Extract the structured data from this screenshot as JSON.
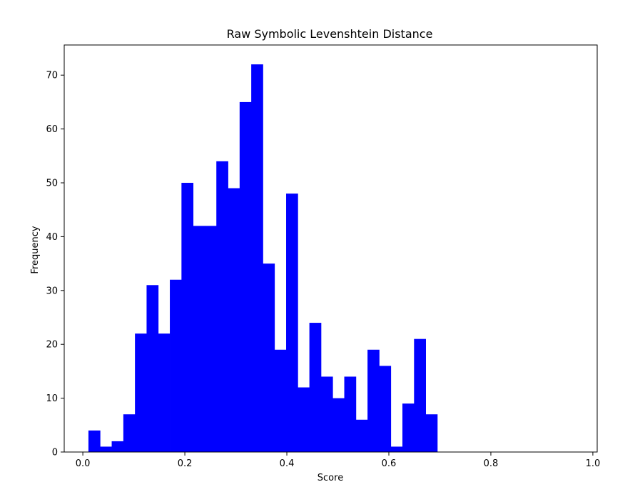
{
  "chart_data": {
    "type": "bar",
    "title": "Raw Symbolic Levenshtein Distance",
    "xlabel": "Score",
    "ylabel": "Frequency",
    "bins": [
      [
        0.011,
        0.0338,
        4
      ],
      [
        0.0338,
        0.0566,
        1
      ],
      [
        0.0566,
        0.0794,
        2
      ],
      [
        0.0794,
        0.1022,
        7
      ],
      [
        0.1022,
        0.125,
        22
      ],
      [
        0.125,
        0.1478,
        31
      ],
      [
        0.1478,
        0.1706,
        22
      ],
      [
        0.1706,
        0.1934,
        32
      ],
      [
        0.1934,
        0.2162,
        50
      ],
      [
        0.2162,
        0.239,
        42
      ],
      [
        0.239,
        0.2618,
        42
      ],
      [
        0.2618,
        0.2846,
        54
      ],
      [
        0.2846,
        0.3074,
        49
      ],
      [
        0.3074,
        0.3302,
        65
      ],
      [
        0.3302,
        0.353,
        72
      ],
      [
        0.353,
        0.3758,
        35
      ],
      [
        0.3758,
        0.3986,
        19
      ],
      [
        0.3986,
        0.4214,
        48
      ],
      [
        0.4214,
        0.4442,
        12
      ],
      [
        0.4442,
        0.467,
        24
      ],
      [
        0.467,
        0.4898,
        14
      ],
      [
        0.4898,
        0.5126,
        10
      ],
      [
        0.5126,
        0.5354,
        14
      ],
      [
        0.5354,
        0.5582,
        6
      ],
      [
        0.5582,
        0.581,
        19
      ],
      [
        0.581,
        0.6038,
        16
      ],
      [
        0.6038,
        0.6266,
        1
      ],
      [
        0.6266,
        0.6494,
        9
      ],
      [
        0.6494,
        0.6722,
        21
      ],
      [
        0.6722,
        0.695,
        7
      ]
    ],
    "bar_color": "#0000ff",
    "xlim": [
      -0.0365,
      1.0085
    ],
    "ylim": [
      0,
      75.6
    ],
    "xticks": [
      0.0,
      0.2,
      0.4,
      0.6,
      0.8,
      1.0
    ],
    "xtick_labels": [
      "0.0",
      "0.2",
      "0.4",
      "0.6",
      "0.8",
      "1.0"
    ],
    "yticks": [
      0,
      10,
      20,
      30,
      40,
      50,
      60,
      70
    ],
    "ytick_labels": [
      "0",
      "10",
      "20",
      "30",
      "40",
      "50",
      "60",
      "70"
    ],
    "grid": false,
    "legend": "none"
  }
}
